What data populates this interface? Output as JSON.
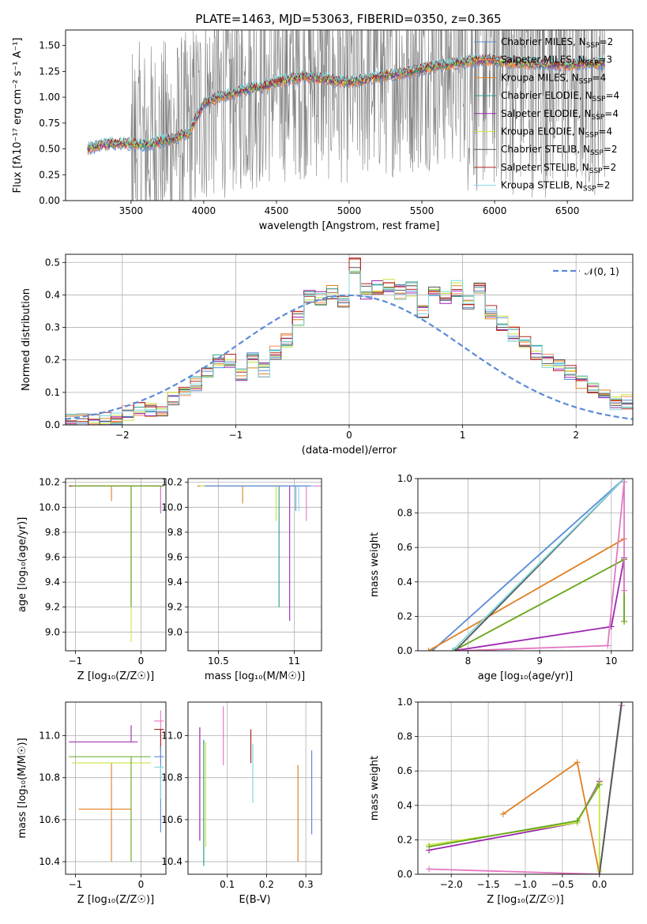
{
  "colors": {
    "chab_miles": "#5b8bd8",
    "salp_miles": "#fc8d62",
    "krou_miles": "#e08020",
    "chab_elodie": "#2a9d8f",
    "salp_elodie": "#9c27b0",
    "krou_elodie": "#c8e640",
    "chab_stelib": "#555555",
    "salp_stelib": "#b22222",
    "krou_stelib": "#7fd8de",
    "pink": "#e377c2",
    "green": "#66a61e",
    "gray_data": "#808080",
    "grid": "#b0b0b0"
  },
  "chart_data": [
    {
      "id": "spectrum",
      "type": "line",
      "title": "PLATE=1463, MJD=53063, FIBERID=0350, z=0.365",
      "xlabel": "wavelength [Angstrom, rest frame]",
      "ylabel": "Flux [fλ10⁻¹⁷ erg cm⁻² s⁻¹ A⁻¹]",
      "xlim": [
        3050,
        6950
      ],
      "ylim": [
        0,
        1.65
      ],
      "xticks": [
        3500,
        4000,
        4500,
        5000,
        5500,
        6000,
        6500
      ],
      "yticks": [
        0.0,
        0.25,
        0.5,
        0.75,
        1.0,
        1.25,
        1.5
      ],
      "legend_position": "top-right",
      "grid": false,
      "series": [
        {
          "name": "Chabrier MILES, N",
          "sub": "SSP",
          "suffix": "=2",
          "color_key": "chab_miles"
        },
        {
          "name": "Salpeter MILES, N",
          "sub": "SSP",
          "suffix": "=3",
          "color_key": "salp_miles"
        },
        {
          "name": "Kroupa MILES, N",
          "sub": "SSP",
          "suffix": "=4",
          "color_key": "krou_miles"
        },
        {
          "name": "Chabrier ELODIE, N",
          "sub": "SSP",
          "suffix": "=4",
          "color_key": "chab_elodie"
        },
        {
          "name": "Salpeter ELODIE, N",
          "sub": "SSP",
          "suffix": "=4",
          "color_key": "salp_elodie"
        },
        {
          "name": "Kroupa ELODIE, N",
          "sub": "SSP",
          "suffix": "=4",
          "color_key": "krou_elodie"
        },
        {
          "name": "Chabrier STELIB, N",
          "sub": "SSP",
          "suffix": "=2",
          "color_key": "chab_stelib"
        },
        {
          "name": "Salpeter STELIB, N",
          "sub": "SSP",
          "suffix": "=2",
          "color_key": "salp_stelib"
        },
        {
          "name": "Kroupa STELIB, N",
          "sub": "SSP",
          "suffix": "=2",
          "color_key": "krou_stelib"
        }
      ],
      "continuum": {
        "x": [
          3200,
          3300,
          3400,
          3500,
          3600,
          3700,
          3800,
          3900,
          4000,
          4100,
          4200,
          4300,
          4400,
          4500,
          4600,
          4700,
          4800,
          4900,
          5000,
          5100,
          5200,
          5300,
          5400,
          5500,
          5600,
          5700,
          5800,
          5900,
          6000,
          6100,
          6200,
          6300,
          6400,
          6500,
          6600,
          6750
        ],
        "y": [
          0.5,
          0.54,
          0.55,
          0.55,
          0.54,
          0.57,
          0.6,
          0.66,
          0.94,
          1.0,
          1.04,
          1.08,
          1.1,
          1.15,
          1.18,
          1.2,
          1.18,
          1.16,
          1.15,
          1.17,
          1.2,
          1.22,
          1.24,
          1.27,
          1.3,
          1.32,
          1.34,
          1.36,
          1.36,
          1.34,
          1.33,
          1.32,
          1.32,
          1.31,
          1.33,
          1.33
        ]
      }
    },
    {
      "id": "residuals",
      "type": "line",
      "xlabel": "(data-model)/error",
      "ylabel": "Normed distribution",
      "xlim": [
        -2.5,
        2.5
      ],
      "ylim": [
        0,
        0.525
      ],
      "xticks": [
        -2,
        -1,
        0,
        1,
        2
      ],
      "xtick_labels": [
        "−2",
        "−1",
        "0",
        "1",
        "2"
      ],
      "yticks": [
        0.0,
        0.1,
        0.2,
        0.3,
        0.4,
        0.5
      ],
      "grid": true,
      "legend_position": "top-right",
      "gaussian_label": "𝒩(0, 1)",
      "bin_edges_start": -2.5,
      "bin_width": 0.1,
      "histogram": [
        0.015,
        0.02,
        0.015,
        0.015,
        0.025,
        0.035,
        0.05,
        0.05,
        0.045,
        0.08,
        0.1,
        0.13,
        0.16,
        0.195,
        0.2,
        0.15,
        0.2,
        0.17,
        0.22,
        0.26,
        0.33,
        0.4,
        0.39,
        0.41,
        0.38,
        0.49,
        0.41,
        0.42,
        0.43,
        0.41,
        0.42,
        0.35,
        0.41,
        0.39,
        0.42,
        0.38,
        0.43,
        0.35,
        0.31,
        0.28,
        0.25,
        0.22,
        0.2,
        0.19,
        0.16,
        0.13,
        0.12,
        0.1,
        0.07,
        0.07,
        0.07,
        0.06,
        0.05,
        0.04,
        0.03
      ]
    },
    {
      "id": "age_vs_Z",
      "type": "scatter",
      "xlabel": "Z [log₁₀(Z/Z☉)]",
      "ylabel": "age  [log₁₀(age/yr)]",
      "xlim": [
        -1.15,
        0.38
      ],
      "ylim": [
        8.85,
        10.23
      ],
      "xticks": [
        -1,
        0
      ],
      "xtick_labels": [
        "−1",
        "0"
      ],
      "yticks": [
        9.0,
        9.2,
        9.4,
        9.6,
        9.8,
        10.0,
        10.2
      ],
      "grid": true
    },
    {
      "id": "age_vs_mass",
      "type": "scatter",
      "xlabel": "mass [log₁₀(M/M☉)]",
      "ylabel": "",
      "xlim": [
        10.3,
        11.18
      ],
      "ylim": [
        8.85,
        10.23
      ],
      "xticks": [
        10.5,
        11.0
      ],
      "yticks": [
        9.0,
        9.2,
        9.4,
        9.6,
        9.8,
        10.0,
        10.2
      ],
      "grid": true
    },
    {
      "id": "massweight_vs_age",
      "type": "line",
      "xlabel": "age  [log₁₀(age/yr)]",
      "ylabel": "mass weight",
      "xlim": [
        7.3,
        10.3
      ],
      "ylim": [
        0,
        1.0
      ],
      "xticks": [
        8,
        9,
        10
      ],
      "yticks": [
        0.0,
        0.2,
        0.4,
        0.6,
        0.8,
        1.0
      ],
      "grid": true,
      "series": [
        {
          "color_key": "chab_miles",
          "x": [
            7.5,
            10.18
          ],
          "y": [
            0.0,
            1.0
          ]
        },
        {
          "color_key": "krou_miles",
          "x": [
            7.45,
            10.18
          ],
          "y": [
            0.0,
            0.65
          ]
        },
        {
          "color_key": "salp_elodie",
          "x": [
            7.8,
            10.0,
            10.18
          ],
          "y": [
            0.0,
            0.14,
            0.54
          ]
        },
        {
          "color_key": "krou_elodie",
          "x": [
            7.8,
            10.18,
            10.18
          ],
          "y": [
            0.0,
            0.53,
            0.17
          ]
        },
        {
          "color_key": "green",
          "x": [
            7.8,
            10.18,
            10.18
          ],
          "y": [
            0.0,
            0.53,
            0.17
          ]
        },
        {
          "color_key": "chab_stelib",
          "x": [
            7.82,
            10.18
          ],
          "y": [
            0.0,
            1.0
          ]
        },
        {
          "color_key": "krou_stelib",
          "x": [
            7.78,
            10.18
          ],
          "y": [
            0.0,
            1.0
          ]
        },
        {
          "color_key": "pink",
          "x": [
            7.9,
            9.95,
            10.18,
            10.18
          ],
          "y": [
            0.0,
            0.03,
            0.98,
            0.35
          ]
        }
      ]
    },
    {
      "id": "mass_vs_Z",
      "type": "scatter",
      "xlabel": "Z [log₁₀(Z/Z☉)]",
      "ylabel": "mass [log₁₀(M/M☉)]",
      "xlim": [
        -1.15,
        0.38
      ],
      "ylim": [
        10.34,
        11.16
      ],
      "xticks": [
        -1,
        0
      ],
      "xtick_labels": [
        "−1",
        "0"
      ],
      "yticks": [
        10.4,
        10.6,
        10.8,
        11.0
      ],
      "grid": true
    },
    {
      "id": "mass_vs_EBV",
      "type": "scatter",
      "xlabel": "E(B-V)",
      "ylabel": "",
      "xlim": [
        0.0,
        0.34
      ],
      "ylim": [
        10.34,
        11.16
      ],
      "xticks": [
        0.1,
        0.2,
        0.3
      ],
      "yticks": [
        10.4,
        10.6,
        10.8,
        11.0
      ],
      "grid": true
    },
    {
      "id": "massweight_vs_Z",
      "type": "line",
      "xlabel": "Z [log₁₀(Z/Z☉)]",
      "ylabel": "mass weight",
      "xlim": [
        -2.45,
        0.45
      ],
      "ylim": [
        0,
        1.0
      ],
      "xticks": [
        -2.0,
        -1.5,
        -1.0,
        -0.5,
        0.0
      ],
      "xtick_labels": [
        "−2.0",
        "−1.5",
        "−1.0",
        "−0.5",
        "0.0"
      ],
      "yticks": [
        0.0,
        0.2,
        0.4,
        0.6,
        0.8,
        1.0
      ],
      "grid": true,
      "series": [
        {
          "color_key": "krou_miles",
          "x": [
            -1.3,
            -0.3,
            0.0,
            0.3
          ],
          "y": [
            0.35,
            0.65,
            0.0,
            1.0
          ]
        },
        {
          "color_key": "salp_elodie",
          "x": [
            -2.3,
            -0.3,
            0.0
          ],
          "y": [
            0.14,
            0.3,
            0.54
          ]
        },
        {
          "color_key": "krou_elodie",
          "x": [
            -2.3,
            -0.3,
            0.0,
            0.0
          ],
          "y": [
            0.17,
            0.3,
            0.53,
            0.02
          ]
        },
        {
          "color_key": "green",
          "x": [
            -2.3,
            -0.3,
            0.0
          ],
          "y": [
            0.16,
            0.31,
            0.52
          ]
        },
        {
          "color_key": "pink",
          "x": [
            -2.3,
            0.0,
            0.3
          ],
          "y": [
            0.03,
            0.0,
            0.98
          ]
        },
        {
          "color_key": "chab_miles",
          "x": [
            0.0,
            0.3
          ],
          "y": [
            0.0,
            1.0
          ]
        },
        {
          "color_key": "krou_stelib",
          "x": [
            0.0,
            0.3
          ],
          "y": [
            0.0,
            1.0
          ]
        },
        {
          "color_key": "chab_stelib",
          "x": [
            0.0,
            0.3
          ],
          "y": [
            0.0,
            1.0
          ]
        }
      ]
    }
  ]
}
